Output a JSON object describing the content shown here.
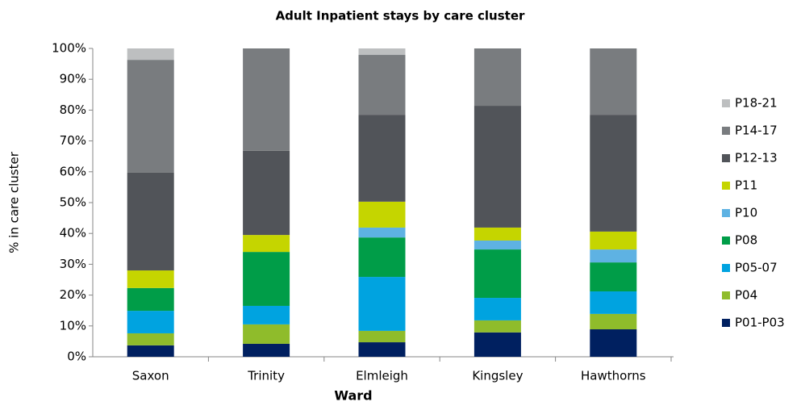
{
  "chart_data": {
    "type": "stacked_bar",
    "title": "Adult Inpatient stays by care cluster",
    "x_label": "Ward",
    "y_label": "% in care cluster",
    "categories": [
      "Saxon",
      "Trinity",
      "Elmleigh",
      "Kingsley",
      "Hawthorns"
    ],
    "series": [
      {
        "name": "P01-P03",
        "color": "#002060",
        "values": [
          3.7,
          4.2,
          4.7,
          7.9,
          8.9
        ]
      },
      {
        "name": "P04",
        "color": "#8fbc2b",
        "values": [
          3.9,
          6.3,
          3.7,
          3.9,
          5.0
        ]
      },
      {
        "name": "P05-07",
        "color": "#00a3e0",
        "values": [
          7.3,
          6.0,
          17.5,
          7.3,
          7.3
        ]
      },
      {
        "name": "P08",
        "color": "#009d48",
        "values": [
          7.4,
          17.5,
          12.8,
          15.7,
          9.4
        ]
      },
      {
        "name": "P10",
        "color": "#5eb2e3",
        "values": [
          0,
          0,
          3.2,
          2.9,
          4.2
        ]
      },
      {
        "name": "P11",
        "color": "#c5d500",
        "values": [
          5.7,
          5.5,
          8.4,
          4.2,
          5.8
        ]
      },
      {
        "name": "P12-13",
        "color": "#515459",
        "values": [
          31.7,
          27.3,
          28.2,
          39.5,
          37.9
        ]
      },
      {
        "name": "P14-17",
        "color": "#797c7f",
        "values": [
          36.6,
          33.2,
          19.4,
          18.6,
          21.5
        ]
      },
      {
        "name": "P18-21",
        "color": "#bdbfc0",
        "values": [
          3.7,
          0,
          2.1,
          0,
          0
        ]
      }
    ],
    "ylim": [
      0,
      100
    ],
    "yticks": [
      {
        "value": 0,
        "label": "0%"
      },
      {
        "value": 10,
        "label": "10%"
      },
      {
        "value": 20,
        "label": "20%"
      },
      {
        "value": 30,
        "label": "30%"
      },
      {
        "value": 40,
        "label": "40%"
      },
      {
        "value": 50,
        "label": "50%"
      },
      {
        "value": 60,
        "label": "60%"
      },
      {
        "value": 70,
        "label": "70%"
      },
      {
        "value": 80,
        "label": "80%"
      },
      {
        "value": 90,
        "label": "90%"
      },
      {
        "value": 100,
        "label": "100%"
      }
    ],
    "legend": "right"
  }
}
